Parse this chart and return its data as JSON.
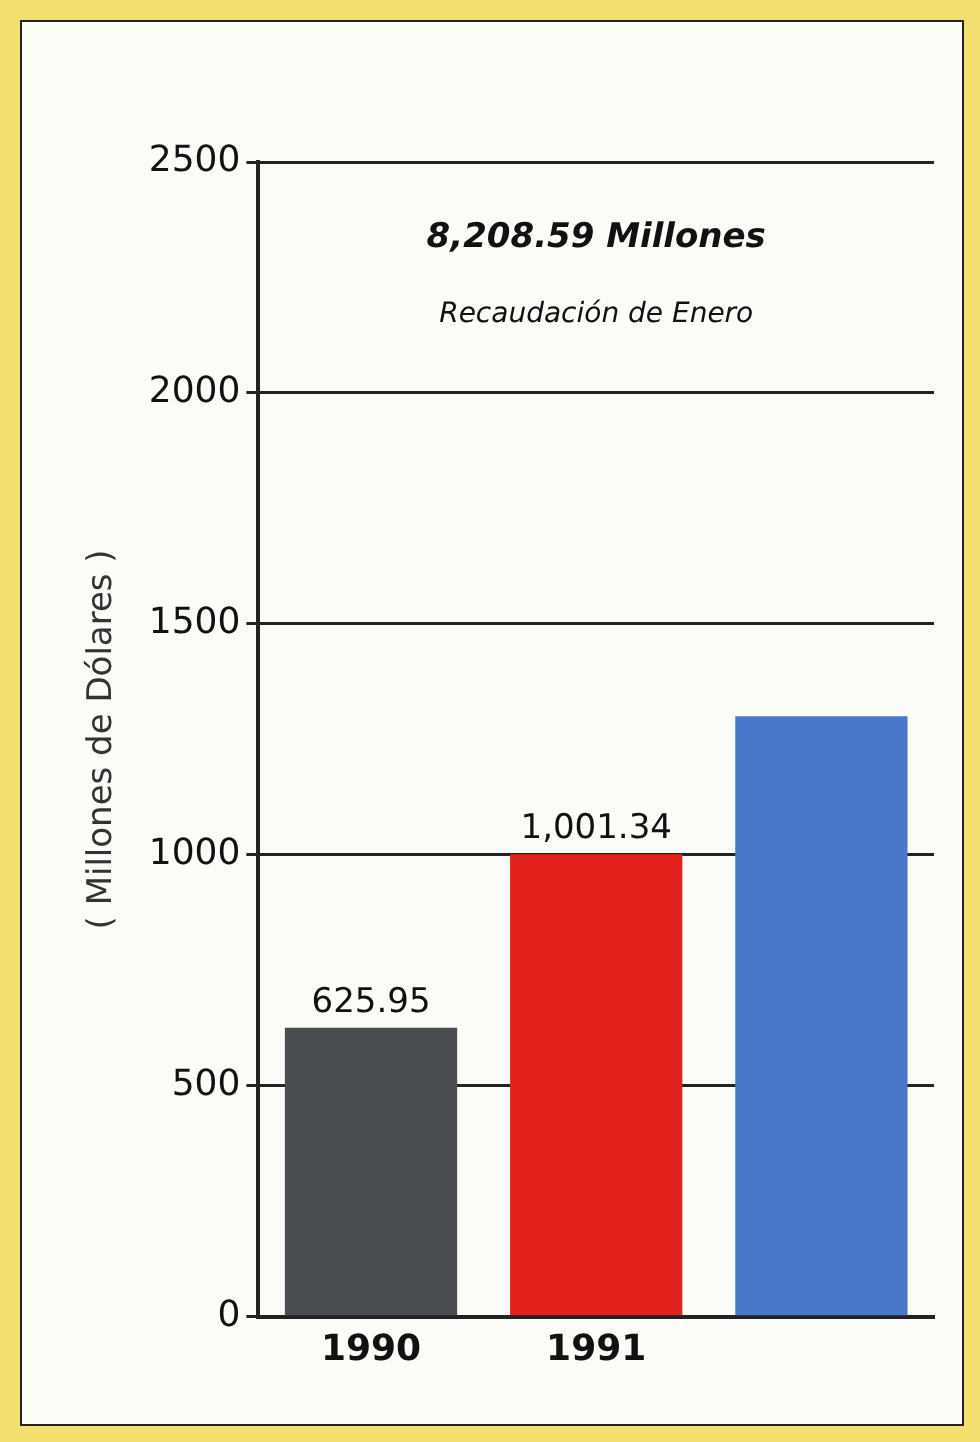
{
  "chart_data": {
    "type": "bar",
    "title": "8,208.59 Millones",
    "subtitle": "Recaudación de Enero",
    "ylabel": "( Millones de Dólares )",
    "categories": [
      "1990",
      "1991",
      null
    ],
    "values": [
      625.95,
      1001.34,
      1300
    ],
    "colors": [
      "#4a4d50",
      "#e3231b",
      "#4a78c8"
    ],
    "value_labels": [
      "625.95",
      "1,001.34",
      null
    ],
    "ylim": [
      0,
      2500
    ],
    "yticks": [
      0,
      500,
      1000,
      1500,
      2000,
      2500
    ],
    "grid": "y",
    "legend": false
  }
}
